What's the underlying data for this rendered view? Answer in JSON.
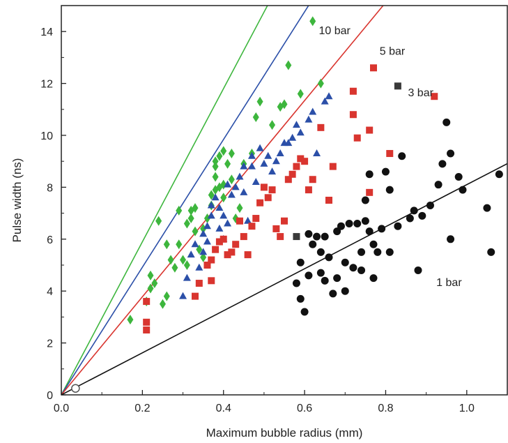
{
  "chart_data": {
    "type": "scatter",
    "xlabel": "Maximum bubble radius (mm)",
    "ylabel": "Pulse width (ns)",
    "xlim": [
      0,
      1.1
    ],
    "ylim": [
      0,
      15
    ],
    "x_ticks": [
      0.0,
      0.2,
      0.4,
      0.6,
      0.8,
      1.0
    ],
    "x_tick_labels": [
      "0.0",
      "0.2",
      "0.4",
      "0.6",
      "0.8",
      "1.0"
    ],
    "y_ticks": [
      0,
      2,
      4,
      6,
      8,
      10,
      12,
      14
    ],
    "y_tick_labels": [
      "0",
      "2",
      "4",
      "6",
      "8",
      "10",
      "12",
      "14"
    ],
    "grid": false,
    "origin_point": {
      "x": 0.035,
      "y": 0.25,
      "marker": "open-circle"
    },
    "series": [
      {
        "name": "10 bar",
        "color": "#3db63d",
        "marker": "diamond",
        "fit_slope": 29.5,
        "points": [
          [
            0.17,
            2.9
          ],
          [
            0.21,
            3.6
          ],
          [
            0.22,
            4.1
          ],
          [
            0.22,
            4.6
          ],
          [
            0.23,
            4.3
          ],
          [
            0.24,
            6.7
          ],
          [
            0.25,
            3.5
          ],
          [
            0.26,
            3.8
          ],
          [
            0.26,
            5.8
          ],
          [
            0.27,
            5.2
          ],
          [
            0.28,
            4.9
          ],
          [
            0.29,
            5.8
          ],
          [
            0.29,
            7.1
          ],
          [
            0.3,
            5.2
          ],
          [
            0.31,
            5.0
          ],
          [
            0.31,
            6.6
          ],
          [
            0.32,
            6.8
          ],
          [
            0.32,
            7.1
          ],
          [
            0.33,
            7.2
          ],
          [
            0.33,
            6.3
          ],
          [
            0.34,
            5.6
          ],
          [
            0.35,
            5.3
          ],
          [
            0.35,
            6.4
          ],
          [
            0.36,
            6.8
          ],
          [
            0.37,
            7.7
          ],
          [
            0.37,
            7.3
          ],
          [
            0.38,
            7.9
          ],
          [
            0.38,
            8.4
          ],
          [
            0.38,
            8.8
          ],
          [
            0.38,
            9.0
          ],
          [
            0.39,
            9.2
          ],
          [
            0.39,
            8.0
          ],
          [
            0.4,
            7.6
          ],
          [
            0.4,
            8.1
          ],
          [
            0.4,
            9.4
          ],
          [
            0.41,
            8.9
          ],
          [
            0.42,
            9.3
          ],
          [
            0.42,
            8.3
          ],
          [
            0.43,
            6.8
          ],
          [
            0.44,
            7.2
          ],
          [
            0.45,
            8.9
          ],
          [
            0.47,
            9.3
          ],
          [
            0.48,
            10.7
          ],
          [
            0.49,
            11.3
          ],
          [
            0.52,
            10.4
          ],
          [
            0.54,
            11.1
          ],
          [
            0.55,
            11.2
          ],
          [
            0.56,
            12.7
          ],
          [
            0.59,
            11.6
          ],
          [
            0.62,
            14.4
          ],
          [
            0.64,
            12.0
          ]
        ]
      },
      {
        "name": "5 bar",
        "color": "#2b4fa8",
        "marker": "triangle",
        "fit_slope": 24.6,
        "points": [
          [
            0.3,
            3.8
          ],
          [
            0.31,
            4.5
          ],
          [
            0.32,
            5.4
          ],
          [
            0.33,
            5.8
          ],
          [
            0.34,
            4.9
          ],
          [
            0.35,
            5.5
          ],
          [
            0.35,
            6.2
          ],
          [
            0.36,
            5.9
          ],
          [
            0.36,
            6.5
          ],
          [
            0.37,
            6.9
          ],
          [
            0.37,
            7.3
          ],
          [
            0.38,
            7.6
          ],
          [
            0.39,
            6.4
          ],
          [
            0.39,
            7.2
          ],
          [
            0.4,
            6.9
          ],
          [
            0.4,
            6.0
          ],
          [
            0.41,
            8.1
          ],
          [
            0.41,
            6.6
          ],
          [
            0.42,
            7.7
          ],
          [
            0.43,
            8.0
          ],
          [
            0.44,
            8.4
          ],
          [
            0.45,
            8.8
          ],
          [
            0.45,
            7.8
          ],
          [
            0.46,
            6.7
          ],
          [
            0.47,
            9.2
          ],
          [
            0.47,
            8.8
          ],
          [
            0.48,
            8.2
          ],
          [
            0.49,
            9.5
          ],
          [
            0.5,
            8.9
          ],
          [
            0.51,
            9.2
          ],
          [
            0.52,
            8.6
          ],
          [
            0.53,
            9.0
          ],
          [
            0.54,
            9.3
          ],
          [
            0.55,
            9.7
          ],
          [
            0.56,
            9.7
          ],
          [
            0.57,
            9.9
          ],
          [
            0.58,
            10.4
          ],
          [
            0.59,
            10.1
          ],
          [
            0.61,
            10.6
          ],
          [
            0.62,
            10.9
          ],
          [
            0.63,
            9.3
          ],
          [
            0.65,
            11.3
          ],
          [
            0.66,
            11.5
          ]
        ]
      },
      {
        "name": "3 bar",
        "color": "#d9352f",
        "marker": "square",
        "fit_slope": 18.9,
        "points": [
          [
            0.21,
            3.6
          ],
          [
            0.21,
            2.8
          ],
          [
            0.21,
            2.5
          ],
          [
            0.33,
            3.8
          ],
          [
            0.34,
            4.3
          ],
          [
            0.36,
            5.0
          ],
          [
            0.37,
            5.2
          ],
          [
            0.37,
            4.4
          ],
          [
            0.38,
            5.6
          ],
          [
            0.39,
            5.9
          ],
          [
            0.4,
            6.0
          ],
          [
            0.41,
            5.4
          ],
          [
            0.42,
            5.5
          ],
          [
            0.43,
            5.8
          ],
          [
            0.44,
            6.7
          ],
          [
            0.45,
            6.1
          ],
          [
            0.46,
            5.4
          ],
          [
            0.47,
            6.5
          ],
          [
            0.48,
            6.8
          ],
          [
            0.49,
            7.4
          ],
          [
            0.5,
            8.0
          ],
          [
            0.51,
            7.6
          ],
          [
            0.52,
            7.9
          ],
          [
            0.53,
            6.4
          ],
          [
            0.54,
            6.1
          ],
          [
            0.55,
            6.7
          ],
          [
            0.56,
            8.3
          ],
          [
            0.57,
            8.5
          ],
          [
            0.58,
            8.8
          ],
          [
            0.59,
            9.1
          ],
          [
            0.6,
            9.0
          ],
          [
            0.61,
            7.9
          ],
          [
            0.62,
            8.3
          ],
          [
            0.64,
            10.3
          ],
          [
            0.66,
            7.5
          ],
          [
            0.67,
            8.8
          ],
          [
            0.72,
            11.7
          ],
          [
            0.72,
            10.8
          ],
          [
            0.73,
            9.9
          ],
          [
            0.76,
            10.2
          ],
          [
            0.76,
            7.8
          ],
          [
            0.77,
            12.6
          ],
          [
            0.81,
            9.3
          ],
          [
            0.92,
            11.5
          ]
        ]
      },
      {
        "name": "1 bar",
        "color": "#111111",
        "marker": "circle",
        "fit_slope": 8.1,
        "points": [
          [
            0.58,
            4.3
          ],
          [
            0.59,
            5.1
          ],
          [
            0.59,
            3.7
          ],
          [
            0.6,
            3.2
          ],
          [
            0.61,
            4.6
          ],
          [
            0.61,
            6.2
          ],
          [
            0.62,
            5.8
          ],
          [
            0.63,
            6.1
          ],
          [
            0.64,
            5.5
          ],
          [
            0.64,
            4.7
          ],
          [
            0.65,
            4.4
          ],
          [
            0.65,
            6.1
          ],
          [
            0.66,
            5.3
          ],
          [
            0.67,
            3.9
          ],
          [
            0.68,
            4.5
          ],
          [
            0.68,
            6.3
          ],
          [
            0.69,
            6.5
          ],
          [
            0.7,
            5.1
          ],
          [
            0.7,
            4.0
          ],
          [
            0.71,
            6.6
          ],
          [
            0.72,
            4.9
          ],
          [
            0.73,
            6.6
          ],
          [
            0.74,
            5.5
          ],
          [
            0.74,
            4.8
          ],
          [
            0.75,
            7.5
          ],
          [
            0.75,
            6.7
          ],
          [
            0.76,
            6.3
          ],
          [
            0.76,
            8.5
          ],
          [
            0.77,
            5.8
          ],
          [
            0.77,
            4.5
          ],
          [
            0.78,
            5.5
          ],
          [
            0.79,
            6.4
          ],
          [
            0.8,
            8.6
          ],
          [
            0.81,
            7.9
          ],
          [
            0.81,
            5.5
          ],
          [
            0.83,
            6.5
          ],
          [
            0.84,
            9.2
          ],
          [
            0.86,
            6.8
          ],
          [
            0.87,
            7.1
          ],
          [
            0.88,
            4.8
          ],
          [
            0.89,
            6.9
          ],
          [
            0.91,
            7.3
          ],
          [
            0.93,
            8.1
          ],
          [
            0.94,
            8.9
          ],
          [
            0.95,
            10.5
          ],
          [
            0.96,
            6.0
          ],
          [
            0.96,
            9.3
          ],
          [
            0.98,
            8.4
          ],
          [
            0.99,
            7.9
          ],
          [
            1.05,
            7.2
          ],
          [
            1.06,
            5.5
          ],
          [
            1.08,
            8.5
          ]
        ]
      }
    ],
    "dark_markers": [
      {
        "x": 0.58,
        "y": 6.1,
        "marker": "square",
        "color": "#3a3a3a"
      },
      {
        "x": 0.83,
        "y": 11.9,
        "marker": "square",
        "color": "#3a3a3a"
      }
    ]
  }
}
